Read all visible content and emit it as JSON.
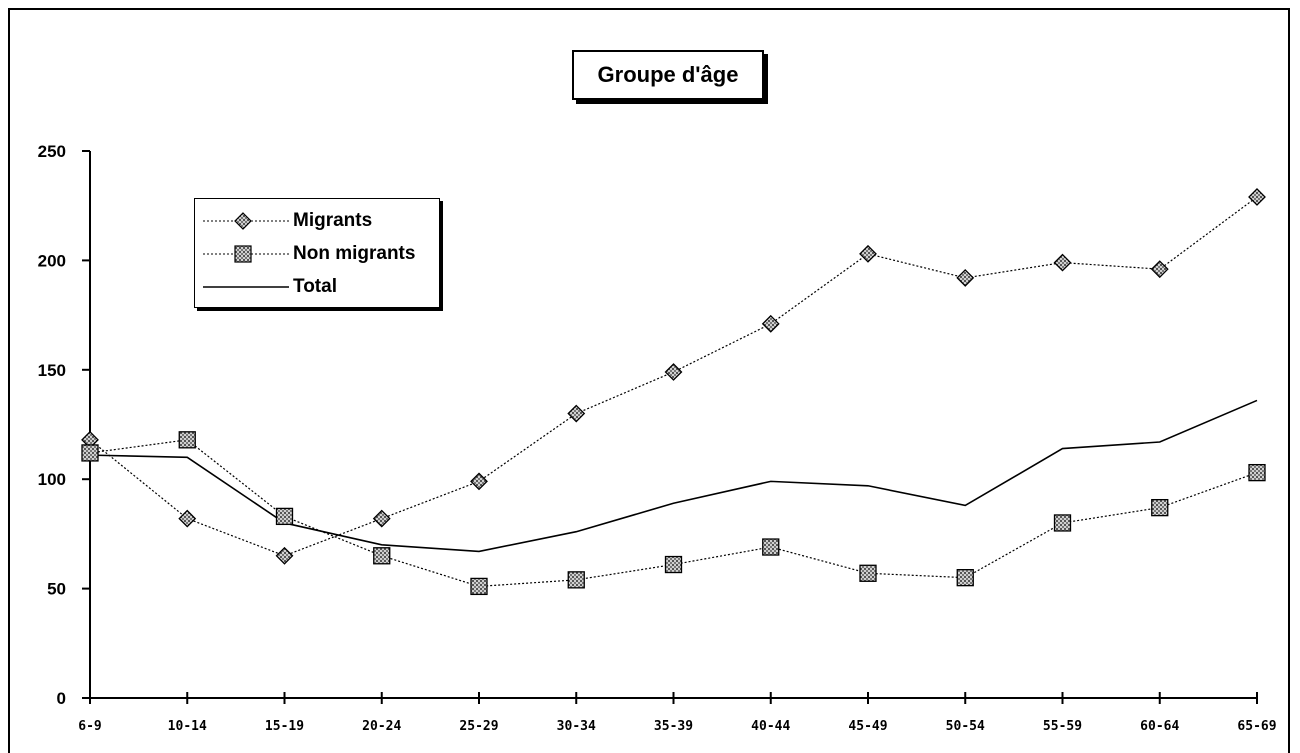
{
  "chart_data": {
    "type": "line",
    "title": "Groupe d'âge",
    "categories": [
      "6-9",
      "10-14",
      "15-19",
      "20-24",
      "25-29",
      "30-34",
      "35-39",
      "40-44",
      "45-49",
      "50-54",
      "55-59",
      "60-64",
      "65-69"
    ],
    "ylim": [
      0,
      250
    ],
    "yticks": [
      "0",
      "50",
      "100",
      "150",
      "200",
      "250"
    ],
    "grid": false,
    "legend_position": "top-left",
    "series": [
      {
        "name": "Migrants",
        "marker": "diamond",
        "line": "dotted",
        "values": [
          118,
          82,
          65,
          82,
          99,
          130,
          149,
          171,
          203,
          192,
          199,
          196,
          229
        ]
      },
      {
        "name": "Non migrants",
        "marker": "square",
        "line": "dotted",
        "values": [
          112,
          118,
          83,
          65,
          51,
          54,
          61,
          69,
          57,
          55,
          80,
          87,
          103
        ]
      },
      {
        "name": "Total",
        "marker": "none",
        "line": "solid",
        "values": [
          111,
          110,
          80,
          70,
          67,
          76,
          89,
          99,
          97,
          88,
          114,
          117,
          136
        ]
      }
    ]
  }
}
